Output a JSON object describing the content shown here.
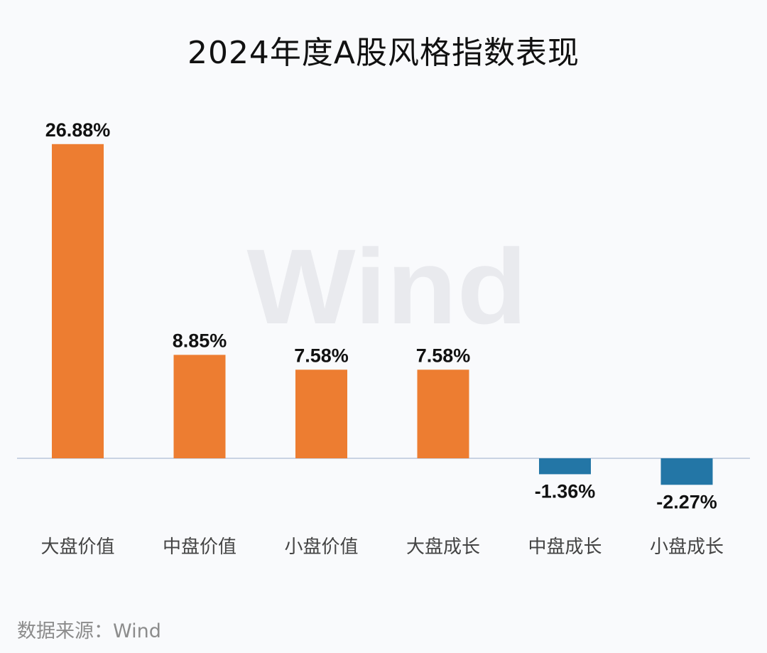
{
  "title": "2024年度A股风格指数表现",
  "source": "数据来源：Wind",
  "watermark": "Wind",
  "chart_data": {
    "type": "bar",
    "title": "2024年度A股风格指数表现",
    "xlabel": "",
    "ylabel": "",
    "categories": [
      "大盘价值",
      "中盘价值",
      "小盘价值",
      "大盘成长",
      "中盘成长",
      "小盘成长"
    ],
    "values": [
      26.88,
      8.85,
      7.58,
      7.58,
      -1.36,
      -2.27
    ],
    "value_labels": [
      "26.88%",
      "8.85%",
      "7.58%",
      "7.58%",
      "-1.36%",
      "-2.27%"
    ],
    "unit": "%",
    "ylim": [
      -2.27,
      26.88
    ],
    "grid": false,
    "legend": "none",
    "colors": {
      "positive": "#ed7d31",
      "negative": "#2376a6",
      "baseline": "#c9d3e3"
    }
  }
}
